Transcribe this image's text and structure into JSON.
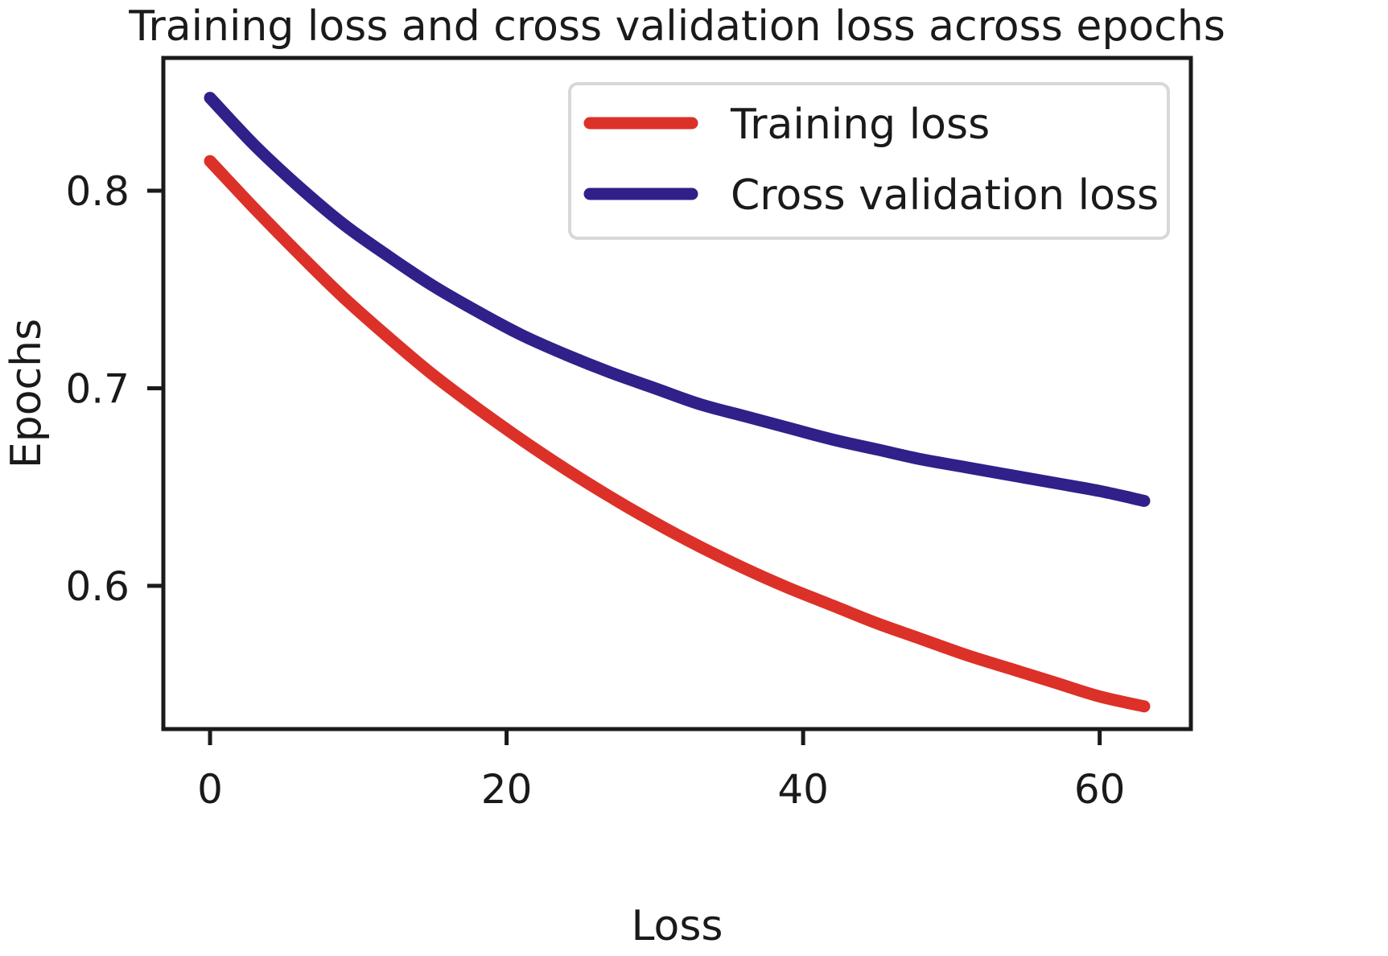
{
  "chart_data": {
    "type": "line",
    "title": "Training loss and cross validation loss across epochs",
    "xlabel": "Loss",
    "ylabel": "Epochs",
    "xlim": [
      -3.15,
      66.15
    ],
    "ylim": [
      0.5275,
      0.8672
    ],
    "xticks": [
      0,
      20,
      40,
      60
    ],
    "xtick_labels": [
      "0",
      "20",
      "40",
      "60"
    ],
    "yticks": [
      0.6,
      0.7,
      0.8
    ],
    "ytick_labels": [
      "0.6",
      "0.7",
      "0.8"
    ],
    "grid": false,
    "legend_position": "upper right",
    "x": [
      0,
      3,
      6,
      9,
      12,
      15,
      18,
      21,
      24,
      27,
      30,
      33,
      36,
      39,
      42,
      45,
      48,
      51,
      54,
      57,
      60,
      63
    ],
    "series": [
      {
        "name": "Training loss",
        "color": "#dc3128",
        "values": [
          0.815,
          0.791,
          0.768,
          0.746,
          0.726,
          0.707,
          0.69,
          0.674,
          0.659,
          0.645,
          0.632,
          0.62,
          0.609,
          0.599,
          0.59,
          0.581,
          0.573,
          0.565,
          0.558,
          0.551,
          0.544,
          0.539
        ]
      },
      {
        "name": "Cross validation loss",
        "color": "#30208a",
        "values": [
          0.847,
          0.823,
          0.802,
          0.783,
          0.767,
          0.752,
          0.739,
          0.727,
          0.717,
          0.708,
          0.7,
          0.692,
          0.686,
          0.68,
          0.674,
          0.669,
          0.664,
          0.66,
          0.656,
          0.652,
          0.648,
          0.643
        ]
      }
    ]
  }
}
